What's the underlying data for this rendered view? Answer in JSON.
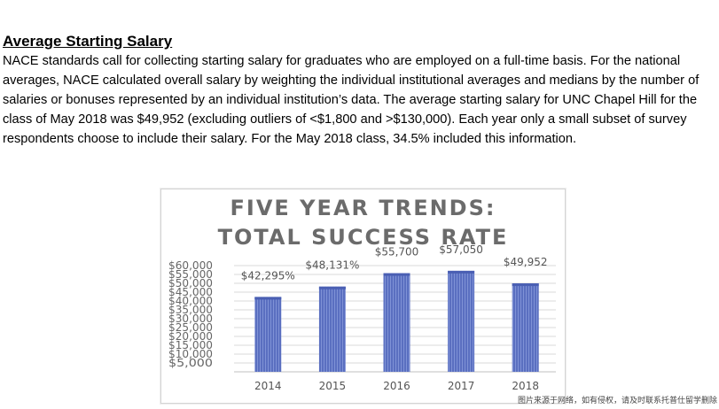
{
  "document": {
    "heading": "Average Starting Salary",
    "paragraph": "NACE standards call for collecting starting salary for graduates who are employed on a full-time basis. For the national averages, NACE calculated overall salary by weighting the individual institutional averages and medians by the number of salaries or bonuses represented by an individual institution’s data.  The average starting salary for UNC Chapel Hill for the class of May 2018 was $49,952 (excluding outliers of <$1,800 and >$130,000).  Each year only a small subset of survey respondents choose to include their salary.  For the May 2018 class, 34.5% included this information."
  },
  "chart_data": {
    "type": "bar",
    "title_line1": "FIVE YEAR TRENDS:",
    "title_line2": "TOTAL SUCCESS RATE",
    "categories": [
      "2014",
      "2015",
      "2016",
      "2017",
      "2018"
    ],
    "values": [
      42295,
      48131,
      55700,
      57050,
      49952
    ],
    "data_labels": [
      "$42,295%",
      "$48,131%",
      "$55,700",
      "$57,050",
      "$49,952"
    ],
    "y_ticks": [
      {
        "value": 60000,
        "label": "$60,000"
      },
      {
        "value": 55000,
        "label": "$55,000"
      },
      {
        "value": 50000,
        "label": "$50,000"
      },
      {
        "value": 45000,
        "label": "$45,000"
      },
      {
        "value": 40000,
        "label": "$40,000"
      },
      {
        "value": 35000,
        "label": "$35,000"
      },
      {
        "value": 30000,
        "label": "$30,000"
      },
      {
        "value": 25000,
        "label": "$25,000"
      },
      {
        "value": 20000,
        "label": "$20,000"
      },
      {
        "value": 15000,
        "label": "$15,000"
      },
      {
        "value": 10000,
        "label": "$10,000"
      },
      {
        "value": 5000,
        "label": "$5,000"
      }
    ],
    "ylim": [
      0,
      60000
    ],
    "grid": true,
    "bar_color": "#5a6fc0",
    "bar_color_light": "#8fa0dc",
    "xlabel": "",
    "ylabel": ""
  },
  "watermark": "图片来源于网络，如有侵权，请及时联系托普仕留学删除"
}
